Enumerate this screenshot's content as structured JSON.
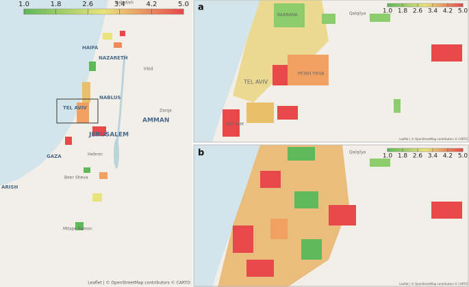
{
  "colorbar": {
    "range": [
      1,
      5
    ],
    "colors": [
      "#5fb85a",
      "#e9e47a",
      "#e8484a"
    ],
    "ticks": [
      {
        "value": 1,
        "label": "1.0"
      },
      {
        "value": 1.8,
        "label": "1.8"
      },
      {
        "value": 2.6,
        "label": "2.6"
      },
      {
        "value": 3.4,
        "label": "3.4"
      },
      {
        "value": 4.2,
        "label": "4.2"
      },
      {
        "value": 5,
        "label": "5.0"
      }
    ]
  },
  "overview_map": {
    "places": [
      "Nabatieh",
      "HAIFA",
      "NAZARETH",
      "Irbid",
      "NABLUS",
      "TEL AVIV",
      "Zarqa",
      "AMMAN",
      "JERUSALEM",
      "GAZA",
      "Hebron",
      "Beer Sheva",
      "ARISH",
      "Mitspe Ramon"
    ],
    "attribution": "Leaflet | © OpenStreetMap contributors © CARTO"
  },
  "panels": [
    {
      "label": "a",
      "places": [
        "RAANANA",
        "PETAH TIKVA",
        "TEL AVIV",
        "Qalqilya",
        "BAT YAM"
      ]
    },
    {
      "label": "b",
      "places": [
        "Qalqilya"
      ]
    }
  ],
  "panel_attribution": "Leaflet | © OpenStreetMap contributors © CARTO"
}
